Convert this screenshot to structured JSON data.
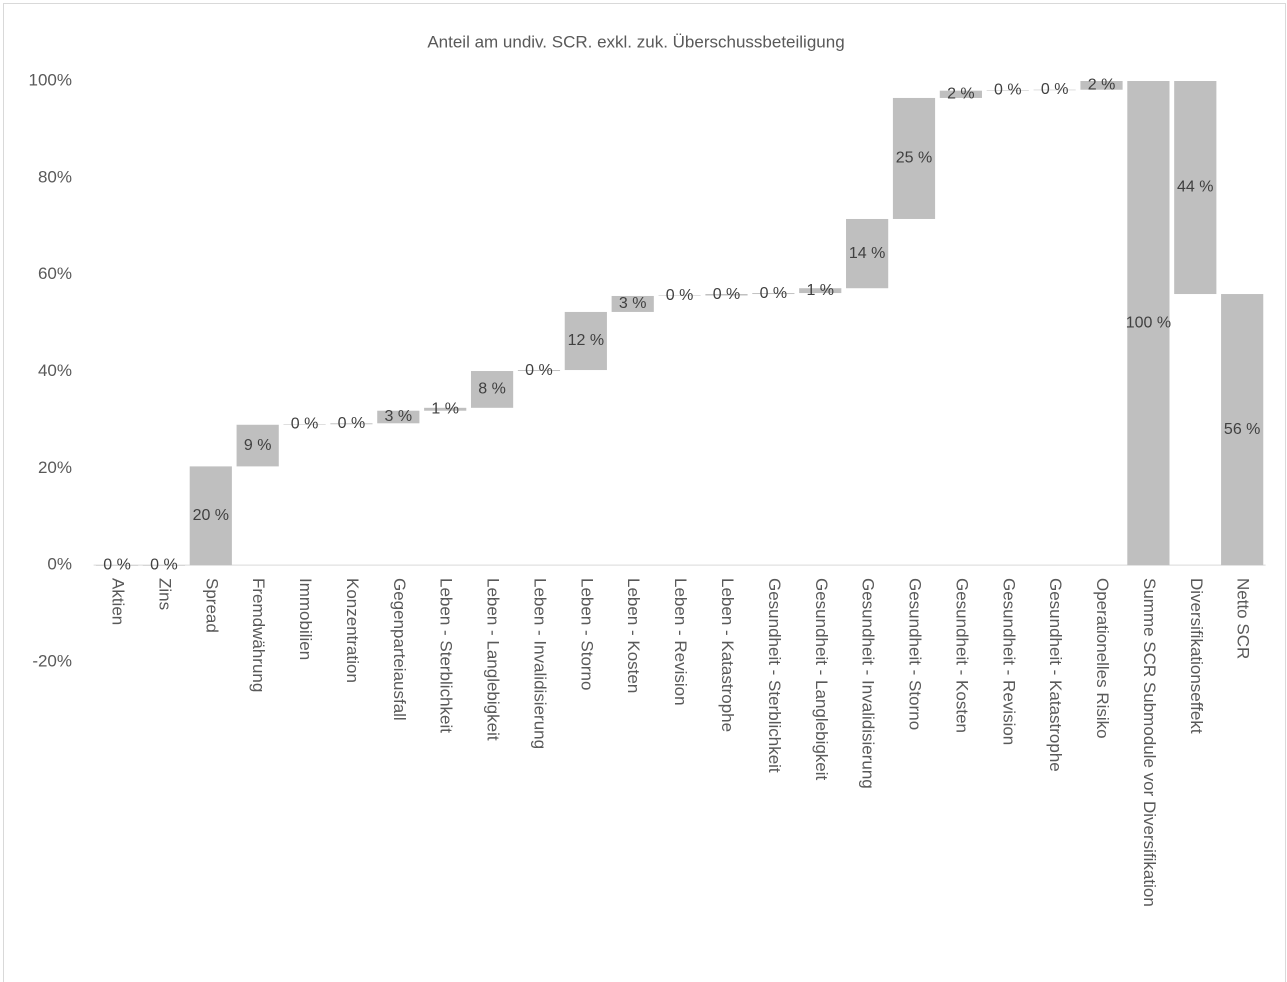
{
  "chart_data": {
    "type": "waterfall",
    "title": "Anteil am undiv. SCR. exkl. zuk. Überschussbeteiligung",
    "categories": [
      "Aktien",
      "Zins",
      "Spread",
      "Fremdwährung",
      "Immobilien",
      "Konzentration",
      "Gegenparteiausfall",
      "Leben - Sterblichkeit",
      "Leben - Langlebigkeit",
      "Leben - Invalidisierung",
      "Leben - Storno",
      "Leben - Kosten",
      "Leben - Revision",
      "Leben - Katastrophe",
      "Gesundheit - Sterblichkeit",
      "Gesundheit - Langlebigkeit",
      "Gesundheit - Invalidisierung",
      "Gesundheit - Storno",
      "Gesundheit - Kosten",
      "Gesundheit - Revision",
      "Gesundheit - Katastrophe",
      "Operationelles Risiko",
      "Summe SCR Submodule vor Diversifikation",
      "Diversifikationseffekt",
      "Netto SCR"
    ],
    "values": [
      0,
      0,
      20.4,
      8.6,
      0.1,
      0.2,
      2.6,
      0.6,
      7.6,
      0.2,
      12.0,
      3.3,
      0.1,
      0.3,
      0.2,
      1.0,
      14.3,
      25.0,
      1.5,
      0.1,
      0.1,
      1.8,
      100,
      -44,
      56
    ],
    "value_labels": [
      "0 %",
      "0 %",
      "20 %",
      "9 %",
      "0 %",
      "0 %",
      "3 %",
      "1 %",
      "8 %",
      "0 %",
      "12 %",
      "3 %",
      "0 %",
      "0 %",
      "0 %",
      "1 %",
      "14 %",
      "25 %",
      "2 %",
      "0 %",
      "0 %",
      "2 %",
      "100 %",
      "44 %",
      "56 %"
    ],
    "measure": [
      "relative",
      "relative",
      "relative",
      "relative",
      "relative",
      "relative",
      "relative",
      "relative",
      "relative",
      "relative",
      "relative",
      "relative",
      "relative",
      "relative",
      "relative",
      "relative",
      "relative",
      "relative",
      "relative",
      "relative",
      "relative",
      "relative",
      "total",
      "relative",
      "total"
    ],
    "color": "#bfbfbf",
    "ylim": [
      -20,
      100
    ],
    "yticks": [
      {
        "value": -20,
        "label": "-20%"
      },
      {
        "value": 0,
        "label": "0%"
      },
      {
        "value": 20,
        "label": "20%"
      },
      {
        "value": 40,
        "label": "40%"
      },
      {
        "value": 60,
        "label": "60%"
      },
      {
        "value": 80,
        "label": "80%"
      },
      {
        "value": 100,
        "label": "100%"
      }
    ],
    "grid": false
  }
}
